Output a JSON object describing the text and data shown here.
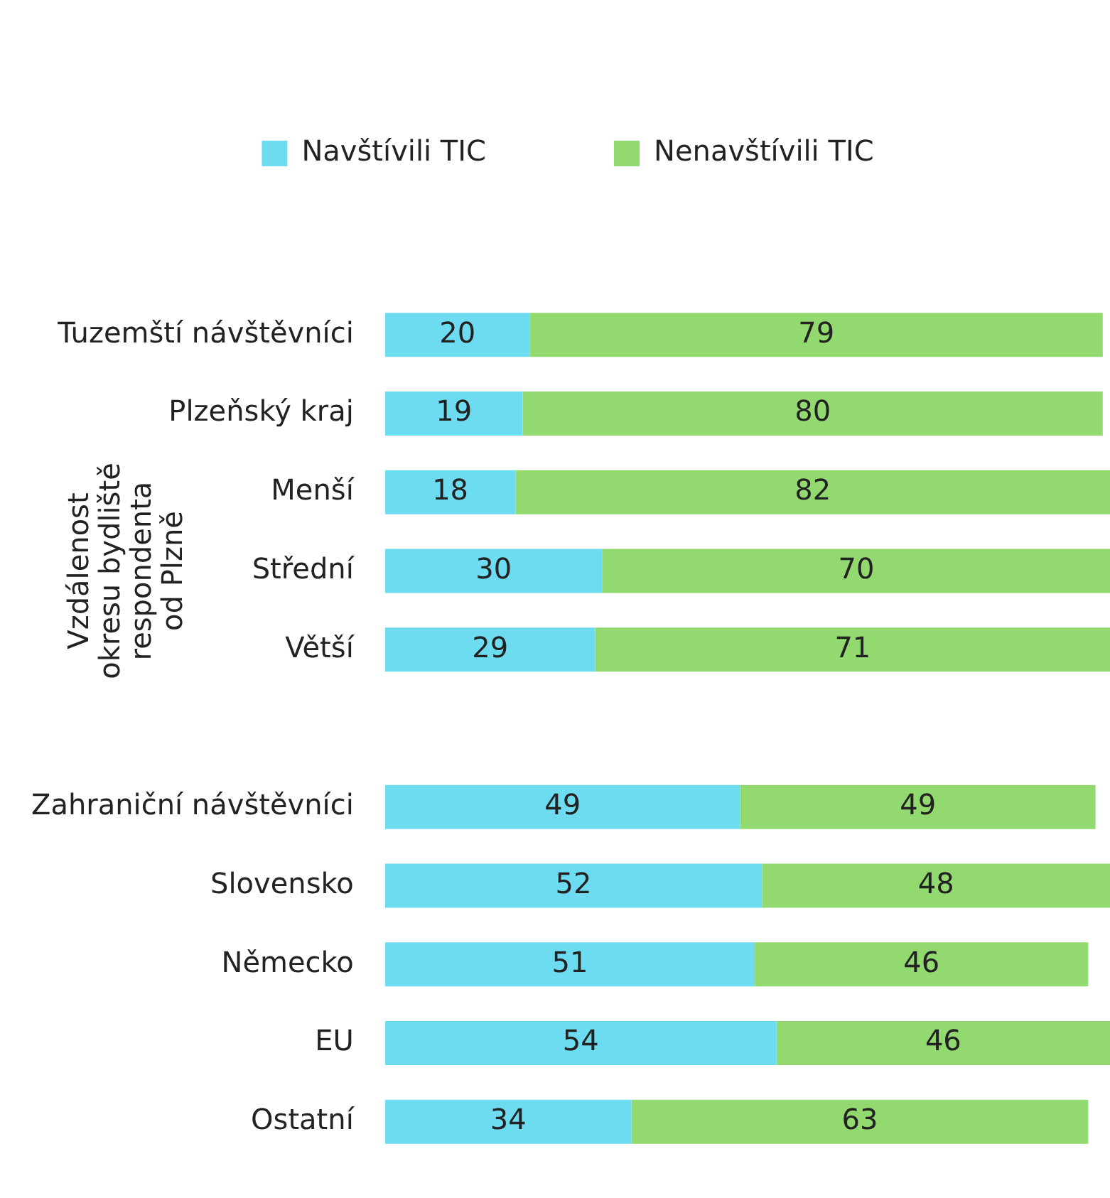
{
  "chart_data": {
    "type": "bar",
    "orientation": "horizontal",
    "stacked": true,
    "categories": [
      "Tuzemští návštěvníci",
      "Plzeňský kraj",
      "Menší",
      "Střední",
      "Větší",
      null,
      "Zahraniční návštěvníci",
      "Slovensko",
      "Německo",
      "EU",
      "Ostatní"
    ],
    "series": [
      {
        "name": "Navštívili TIC",
        "color": "#6ddcf0",
        "values": [
          20,
          19,
          18,
          30,
          29,
          null,
          49,
          52,
          51,
          54,
          34
        ]
      },
      {
        "name": "Nenavštívili TIC",
        "color": "#92d96f",
        "values": [
          79,
          80,
          82,
          70,
          71,
          null,
          49,
          48,
          46,
          46,
          63
        ]
      }
    ],
    "xlim": [
      0,
      100
    ],
    "tick_labels": "y",
    "data_labels": true,
    "legend": "top",
    "annotations": [
      "Vzdálenost okresu bydliště respondenta od Plzně"
    ]
  }
}
